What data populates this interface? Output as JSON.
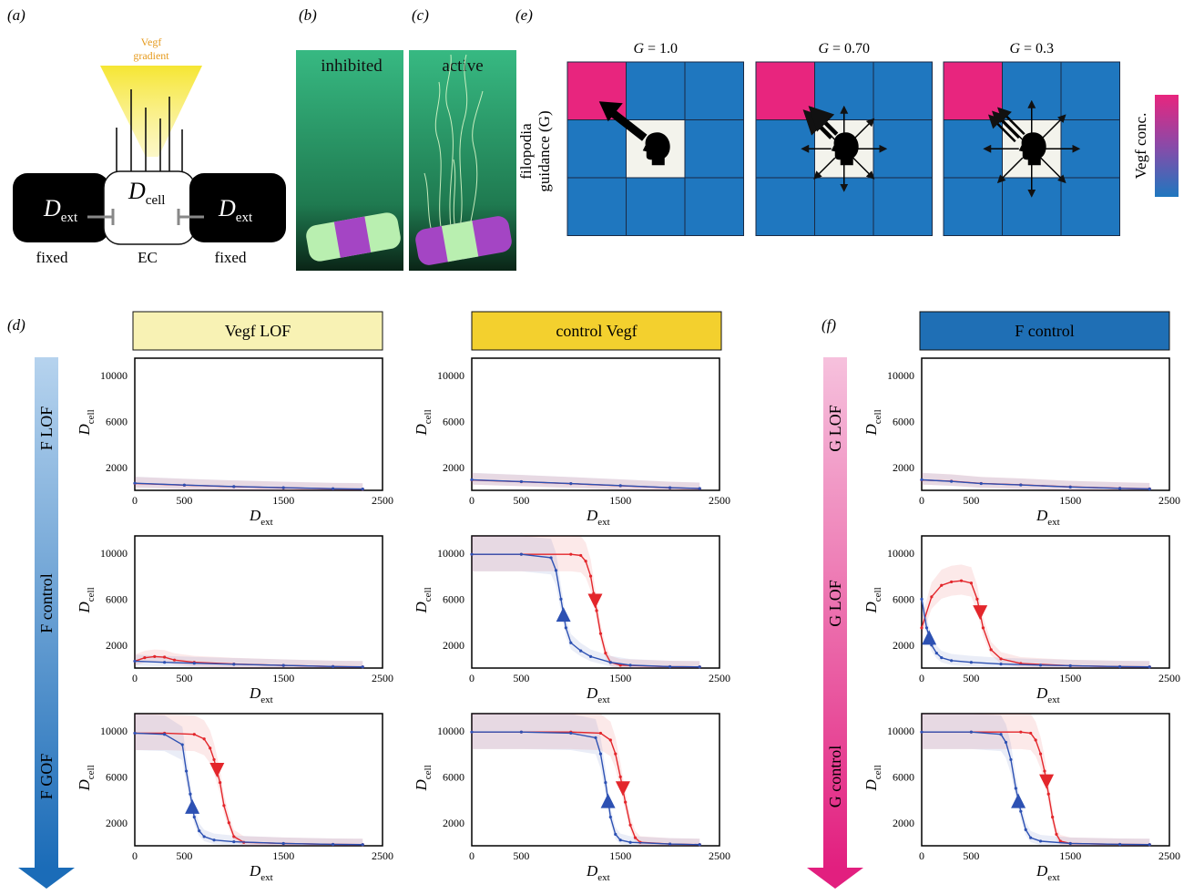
{
  "colors": {
    "heatmap_blue": "#1f77bf",
    "heatmap_pink": "#e8257e",
    "cell_bg": "#f3f3ec",
    "vegf_lof_header": "#f8f2b4",
    "control_vegf_header": "#f3d02e",
    "f_control_header": "#1f6fb5",
    "red_curve": "#e3262b",
    "blue_curve": "#2d51b3",
    "vegf_gradient": "#f7e53a",
    "pink_arrow": "#e8257e",
    "blue_arrow": "#2a7ac4",
    "tube_purple": "#a445c4",
    "tube_green": "#b9efb0"
  },
  "panel_labels": {
    "a": "(a)",
    "b": "(b)",
    "c": "(c)",
    "d": "(d)",
    "e": "(e)",
    "f": "(f)"
  },
  "panel_a": {
    "gradient_line1": "Vegf",
    "gradient_line2": "gradient",
    "dcell_main": "D",
    "dcell_sub": "cell",
    "dext_main": "D",
    "dext_sub": "ext",
    "fixed_left": "fixed",
    "ec": "EC",
    "fixed_right": "fixed"
  },
  "panel_b": {
    "label": "inhibited"
  },
  "panel_c": {
    "label": "active"
  },
  "panel_e": {
    "y_label_line1": "filopodia",
    "y_label_line2": "guidance (G)",
    "g_prefix": "G",
    "g_values": [
      "= 1.0",
      "= 0.70",
      "= 0.3"
    ],
    "colorbar_label": "Vegf conc."
  },
  "headers": {
    "vegf_lof": "Vegf LOF",
    "control_vegf": "control Vegf",
    "f_control": "F control"
  },
  "row_labels_d": [
    "F LOF",
    "F control",
    "F GOF"
  ],
  "row_labels_f": [
    "G LOF",
    "G LOF",
    "G control"
  ],
  "axis": {
    "x_main": "D",
    "x_sub": "ext",
    "y_main": "D",
    "y_sub": "cell",
    "xticks": [
      "0",
      "500",
      "1500",
      "2500"
    ],
    "yticks": [
      "2000",
      "6000",
      "10000"
    ]
  },
  "chart_data": [
    {
      "type": "line",
      "panel": "d",
      "column": "Vegf LOF",
      "row": "F LOF",
      "xlim": [
        0,
        2500
      ],
      "ylim": [
        0,
        11500
      ],
      "series": [
        {
          "x": [
            0,
            500,
            1000,
            1500,
            2000,
            2300
          ],
          "y": [
            600,
            450,
            320,
            220,
            130,
            100
          ]
        },
        {
          "x": [
            0,
            500,
            1000,
            1500,
            2000,
            2300
          ],
          "y": [
            620,
            460,
            330,
            230,
            140,
            110
          ]
        }
      ]
    },
    {
      "type": "line",
      "panel": "d",
      "column": "Vegf LOF",
      "row": "F control",
      "xlim": [
        0,
        2500
      ],
      "ylim": [
        0,
        11500
      ],
      "series": [
        {
          "x": [
            0,
            100,
            200,
            300,
            400,
            600,
            1000,
            1500,
            2000,
            2300
          ],
          "y": [
            600,
            900,
            1000,
            950,
            700,
            500,
            350,
            230,
            130,
            100
          ]
        },
        {
          "x": [
            0,
            300,
            600,
            1000,
            1500,
            2000,
            2300
          ],
          "y": [
            600,
            500,
            420,
            330,
            230,
            130,
            100
          ]
        }
      ]
    },
    {
      "type": "line",
      "panel": "d",
      "column": "Vegf LOF",
      "row": "F GOF",
      "xlim": [
        0,
        2500
      ],
      "ylim": [
        0,
        11500
      ],
      "series": [
        {
          "x": [
            0,
            300,
            600,
            700,
            760,
            800,
            860,
            900,
            950,
            1000,
            1100,
            1500,
            2000,
            2300
          ],
          "y": [
            9800,
            9800,
            9700,
            9300,
            8500,
            7500,
            5500,
            3500,
            2000,
            800,
            300,
            200,
            120,
            100
          ]
        },
        {
          "x": [
            0,
            300,
            480,
            520,
            560,
            600,
            650,
            700,
            800,
            1000,
            1500,
            2000,
            2300
          ],
          "y": [
            9800,
            9700,
            8800,
            6500,
            4500,
            2500,
            1300,
            800,
            500,
            350,
            200,
            120,
            100
          ]
        }
      ]
    },
    {
      "type": "line",
      "panel": "d",
      "column": "control Vegf",
      "row": "F LOF",
      "xlim": [
        0,
        2500
      ],
      "ylim": [
        0,
        11500
      ],
      "series": [
        {
          "x": [
            0,
            500,
            1000,
            1500,
            2000,
            2300
          ],
          "y": [
            900,
            750,
            580,
            400,
            220,
            150
          ]
        },
        {
          "x": [
            0,
            500,
            1000,
            1500,
            2000,
            2300
          ],
          "y": [
            920,
            760,
            590,
            410,
            230,
            160
          ]
        }
      ]
    },
    {
      "type": "line",
      "panel": "d",
      "column": "control Vegf",
      "row": "F control",
      "xlim": [
        0,
        2500
      ],
      "ylim": [
        0,
        11500
      ],
      "series": [
        {
          "x": [
            0,
            500,
            1000,
            1100,
            1150,
            1200,
            1230,
            1260,
            1300,
            1350,
            1400,
            1500,
            2000,
            2300
          ],
          "y": [
            9900,
            9900,
            9900,
            9800,
            9300,
            8000,
            6500,
            5000,
            3000,
            1300,
            500,
            250,
            120,
            100
          ]
        },
        {
          "x": [
            0,
            500,
            800,
            850,
            900,
            950,
            1000,
            1100,
            1200,
            1400,
            1600,
            2000,
            2300
          ],
          "y": [
            9900,
            9900,
            9600,
            8500,
            6000,
            3500,
            2200,
            1500,
            1000,
            500,
            250,
            120,
            100
          ]
        }
      ]
    },
    {
      "type": "line",
      "panel": "d",
      "column": "control Vegf",
      "row": "F GOF",
      "xlim": [
        0,
        2500
      ],
      "ylim": [
        0,
        11500
      ],
      "series": [
        {
          "x": [
            0,
            500,
            1000,
            1300,
            1400,
            1450,
            1500,
            1550,
            1600,
            1650,
            1700,
            2000,
            2300
          ],
          "y": [
            9900,
            9900,
            9900,
            9800,
            9200,
            8000,
            6000,
            3800,
            1800,
            700,
            300,
            150,
            100
          ]
        },
        {
          "x": [
            0,
            500,
            1000,
            1250,
            1300,
            1350,
            1400,
            1450,
            1500,
            1600,
            2000,
            2300
          ],
          "y": [
            9900,
            9900,
            9800,
            9400,
            8000,
            5500,
            2500,
            1000,
            500,
            300,
            150,
            100
          ]
        }
      ]
    },
    {
      "type": "line",
      "panel": "f",
      "column": "F control",
      "row": "G LOF",
      "xlim": [
        0,
        2500
      ],
      "ylim": [
        0,
        11500
      ],
      "series": [
        {
          "x": [
            0,
            300,
            600,
            1000,
            1500,
            2000,
            2300
          ],
          "y": [
            900,
            800,
            600,
            480,
            300,
            180,
            130
          ]
        },
        {
          "x": [
            0,
            300,
            600,
            1000,
            1500,
            2000,
            2300
          ],
          "y": [
            920,
            780,
            590,
            470,
            290,
            170,
            120
          ]
        }
      ]
    },
    {
      "type": "line",
      "panel": "f",
      "column": "F control",
      "row": "G LOF",
      "xlim": [
        0,
        2500
      ],
      "ylim": [
        0,
        11500
      ],
      "series": [
        {
          "x": [
            0,
            100,
            200,
            300,
            400,
            500,
            560,
            620,
            700,
            800,
            1000,
            1500,
            2000,
            2300
          ],
          "y": [
            3500,
            6200,
            7200,
            7500,
            7600,
            7400,
            6000,
            3500,
            1600,
            800,
            400,
            200,
            120,
            100
          ]
        },
        {
          "x": [
            0,
            50,
            100,
            150,
            200,
            300,
            500,
            800,
            1200,
            1500,
            2000,
            2300
          ],
          "y": [
            6000,
            3500,
            2000,
            1300,
            900,
            650,
            500,
            350,
            250,
            200,
            120,
            100
          ]
        }
      ]
    },
    {
      "type": "line",
      "panel": "f",
      "column": "F control",
      "row": "G control",
      "xlim": [
        0,
        2500
      ],
      "ylim": [
        0,
        11500
      ],
      "series": [
        {
          "x": [
            0,
            500,
            1000,
            1100,
            1150,
            1200,
            1240,
            1280,
            1320,
            1360,
            1400,
            1500,
            2000,
            2300
          ],
          "y": [
            9900,
            9900,
            9900,
            9800,
            9200,
            8000,
            6500,
            4500,
            2500,
            1000,
            400,
            200,
            120,
            100
          ]
        },
        {
          "x": [
            0,
            500,
            800,
            850,
            900,
            950,
            1000,
            1050,
            1100,
            1200,
            1500,
            2000,
            2300
          ],
          "y": [
            9900,
            9900,
            9700,
            9000,
            7500,
            5000,
            3000,
            1400,
            700,
            400,
            200,
            120,
            100
          ]
        }
      ]
    }
  ]
}
